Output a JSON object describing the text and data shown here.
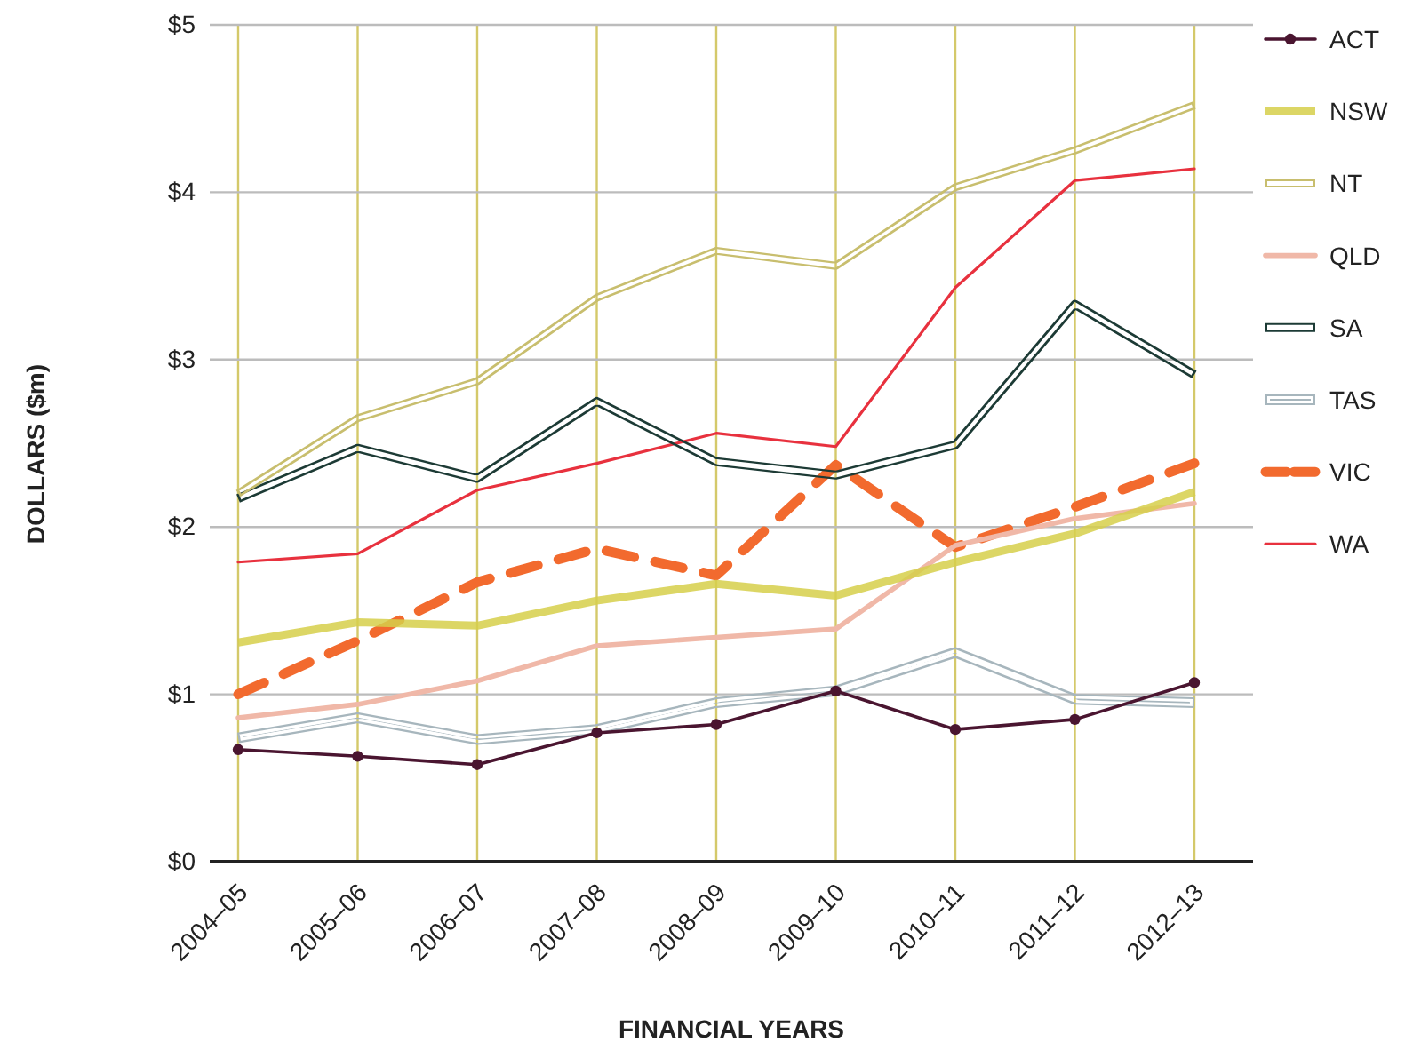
{
  "chart_data": {
    "type": "line",
    "xlabel": "FINANCIAL YEARS",
    "ylabel": "DOLLARS ($m)",
    "categories": [
      "2004–05",
      "2005–06",
      "2006–07",
      "2007–08",
      "2008–09",
      "2009–10",
      "2010–11",
      "2011–12",
      "2012–13"
    ],
    "ylim": [
      0,
      5
    ],
    "yticks": [
      {
        "value": 0,
        "label": "$0"
      },
      {
        "value": 1,
        "label": "$1"
      },
      {
        "value": 2,
        "label": "$2"
      },
      {
        "value": 3,
        "label": "$3"
      },
      {
        "value": 4,
        "label": "$4"
      },
      {
        "value": 5,
        "label": "$5"
      }
    ],
    "grid": true,
    "legend": "right",
    "series": [
      {
        "name": "ACT",
        "color": "#4a1530",
        "marker": "circle",
        "values": [
          0.67,
          0.63,
          0.58,
          0.77,
          0.82,
          1.02,
          0.79,
          0.85,
          1.07
        ]
      },
      {
        "name": "NSW",
        "color": "#d6cf4a",
        "values": [
          1.31,
          1.43,
          1.41,
          1.56,
          1.66,
          1.59,
          1.79,
          1.96,
          2.21
        ]
      },
      {
        "name": "NT",
        "color": "#c8be6e",
        "values": [
          2.2,
          2.65,
          2.87,
          3.37,
          3.65,
          3.56,
          4.03,
          4.25,
          4.52
        ]
      },
      {
        "name": "QLD",
        "color": "#f0b8a8",
        "values": [
          0.86,
          0.94,
          1.08,
          1.29,
          1.34,
          1.39,
          1.89,
          2.05,
          2.14
        ]
      },
      {
        "name": "SA",
        "color": "#1e3a36",
        "values": [
          2.17,
          2.47,
          2.29,
          2.75,
          2.39,
          2.31,
          2.49,
          3.33,
          2.91
        ]
      },
      {
        "name": "TAS",
        "color": "#a7b6bd",
        "values": [
          0.74,
          0.86,
          0.73,
          0.79,
          0.95,
          1.02,
          1.25,
          0.97,
          0.95
        ]
      },
      {
        "name": "VIC",
        "color": "#f26a2e",
        "line_style": "dashed",
        "values": [
          1.0,
          1.32,
          1.67,
          1.87,
          1.71,
          2.37,
          1.88,
          2.12,
          2.38
        ]
      },
      {
        "name": "WA",
        "color": "#e8313e",
        "values": [
          1.79,
          1.84,
          2.22,
          2.38,
          2.56,
          2.48,
          3.43,
          4.07,
          4.14
        ]
      }
    ]
  }
}
